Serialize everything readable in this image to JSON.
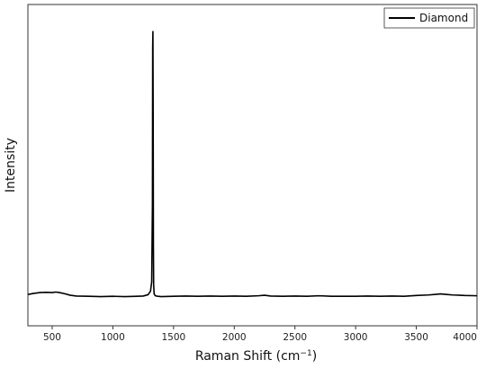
{
  "chart_data": {
    "type": "line",
    "xlabel": "Raman Shift (cm",
    "xlabel_sup": "−1",
    "xlabel_tail": ")",
    "ylabel": "Intensity",
    "xlim": [
      300,
      4000
    ],
    "ylim": [
      0,
      1
    ],
    "xticks": [
      500,
      1000,
      1500,
      2000,
      2500,
      3000,
      3500,
      4000
    ],
    "grid": false,
    "legend_position": "top-right",
    "series": [
      {
        "name": "Diamond",
        "color": "#000000",
        "x": [
          300,
          350,
          400,
          450,
          500,
          530,
          560,
          600,
          650,
          700,
          800,
          900,
          1000,
          1100,
          1200,
          1250,
          1290,
          1310,
          1320,
          1326,
          1328,
          1330,
          1332,
          1334,
          1336,
          1340,
          1350,
          1370,
          1400,
          1500,
          1600,
          1700,
          1800,
          1900,
          2000,
          2100,
          2200,
          2250,
          2300,
          2400,
          2500,
          2600,
          2700,
          2800,
          2900,
          3000,
          3100,
          3200,
          3300,
          3400,
          3500,
          3600,
          3650,
          3700,
          3750,
          3800,
          3900,
          4000
        ],
        "y": [
          0.013,
          0.017,
          0.02,
          0.021,
          0.02,
          0.022,
          0.02,
          0.016,
          0.01,
          0.007,
          0.006,
          0.005,
          0.006,
          0.005,
          0.006,
          0.007,
          0.012,
          0.025,
          0.06,
          0.35,
          0.94,
          1.0,
          0.7,
          0.2,
          0.05,
          0.015,
          0.008,
          0.006,
          0.005,
          0.006,
          0.007,
          0.006,
          0.007,
          0.006,
          0.007,
          0.006,
          0.008,
          0.01,
          0.007,
          0.006,
          0.007,
          0.006,
          0.008,
          0.006,
          0.006,
          0.006,
          0.007,
          0.006,
          0.007,
          0.006,
          0.009,
          0.011,
          0.013,
          0.015,
          0.013,
          0.011,
          0.009,
          0.008
        ]
      }
    ]
  }
}
